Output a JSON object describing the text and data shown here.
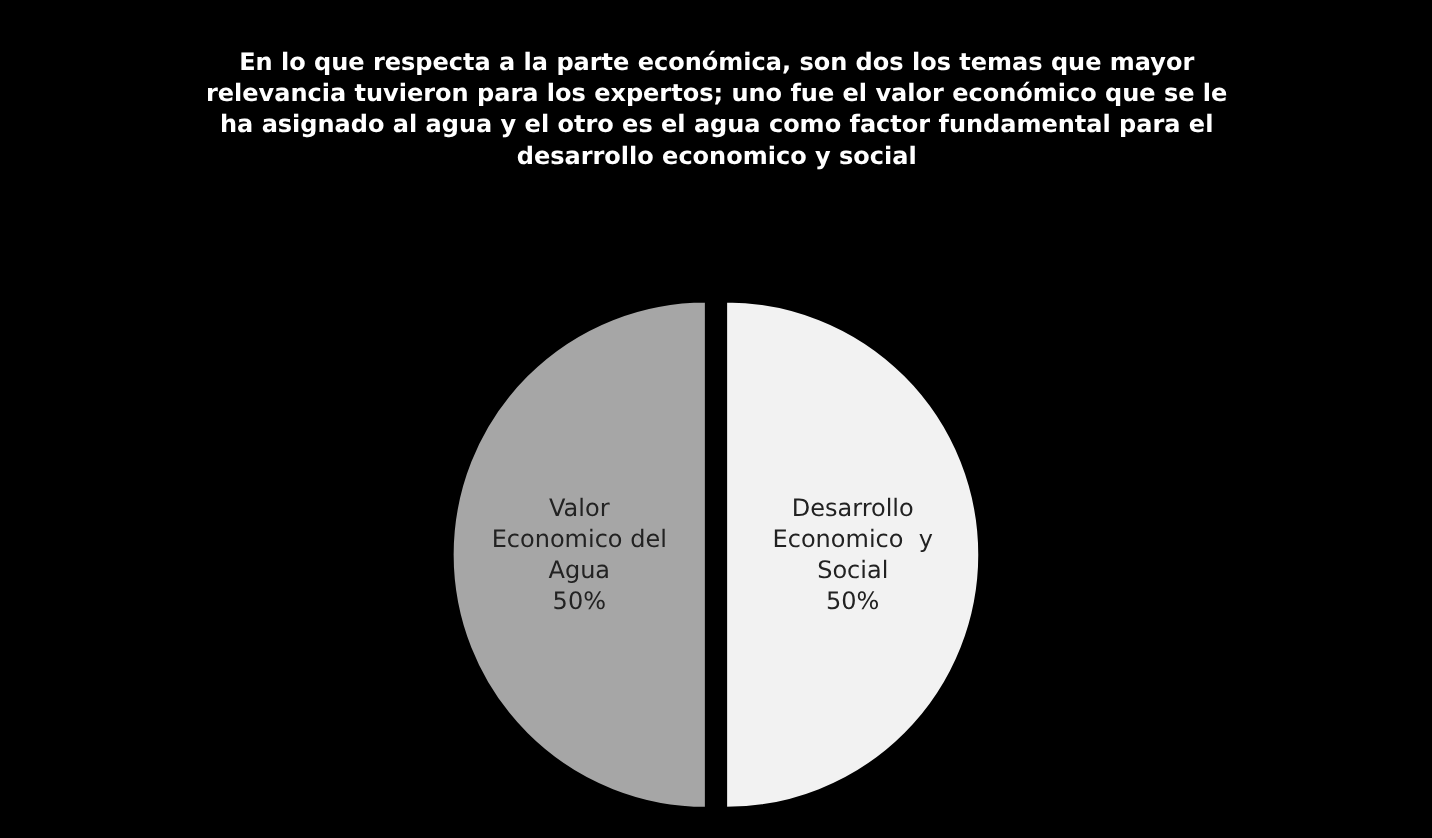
{
  "chart_data": {
    "type": "pie",
    "title": "En lo que respecta a la parte económica, son dos los temas que mayor relevancia tuvieron para los expertos; uno fue el valor económico que se le ha asignado al agua y el otro es el agua como factor fundamental para el desarrollo economico y social",
    "categories": [
      "Valor Economico del Agua",
      "Desarrollo Economico  y Social"
    ],
    "values": [
      50,
      50
    ],
    "value_labels": [
      "50%",
      "50%"
    ],
    "colors": [
      "#a6a6a6",
      "#f2f2f2"
    ],
    "legend": false
  }
}
